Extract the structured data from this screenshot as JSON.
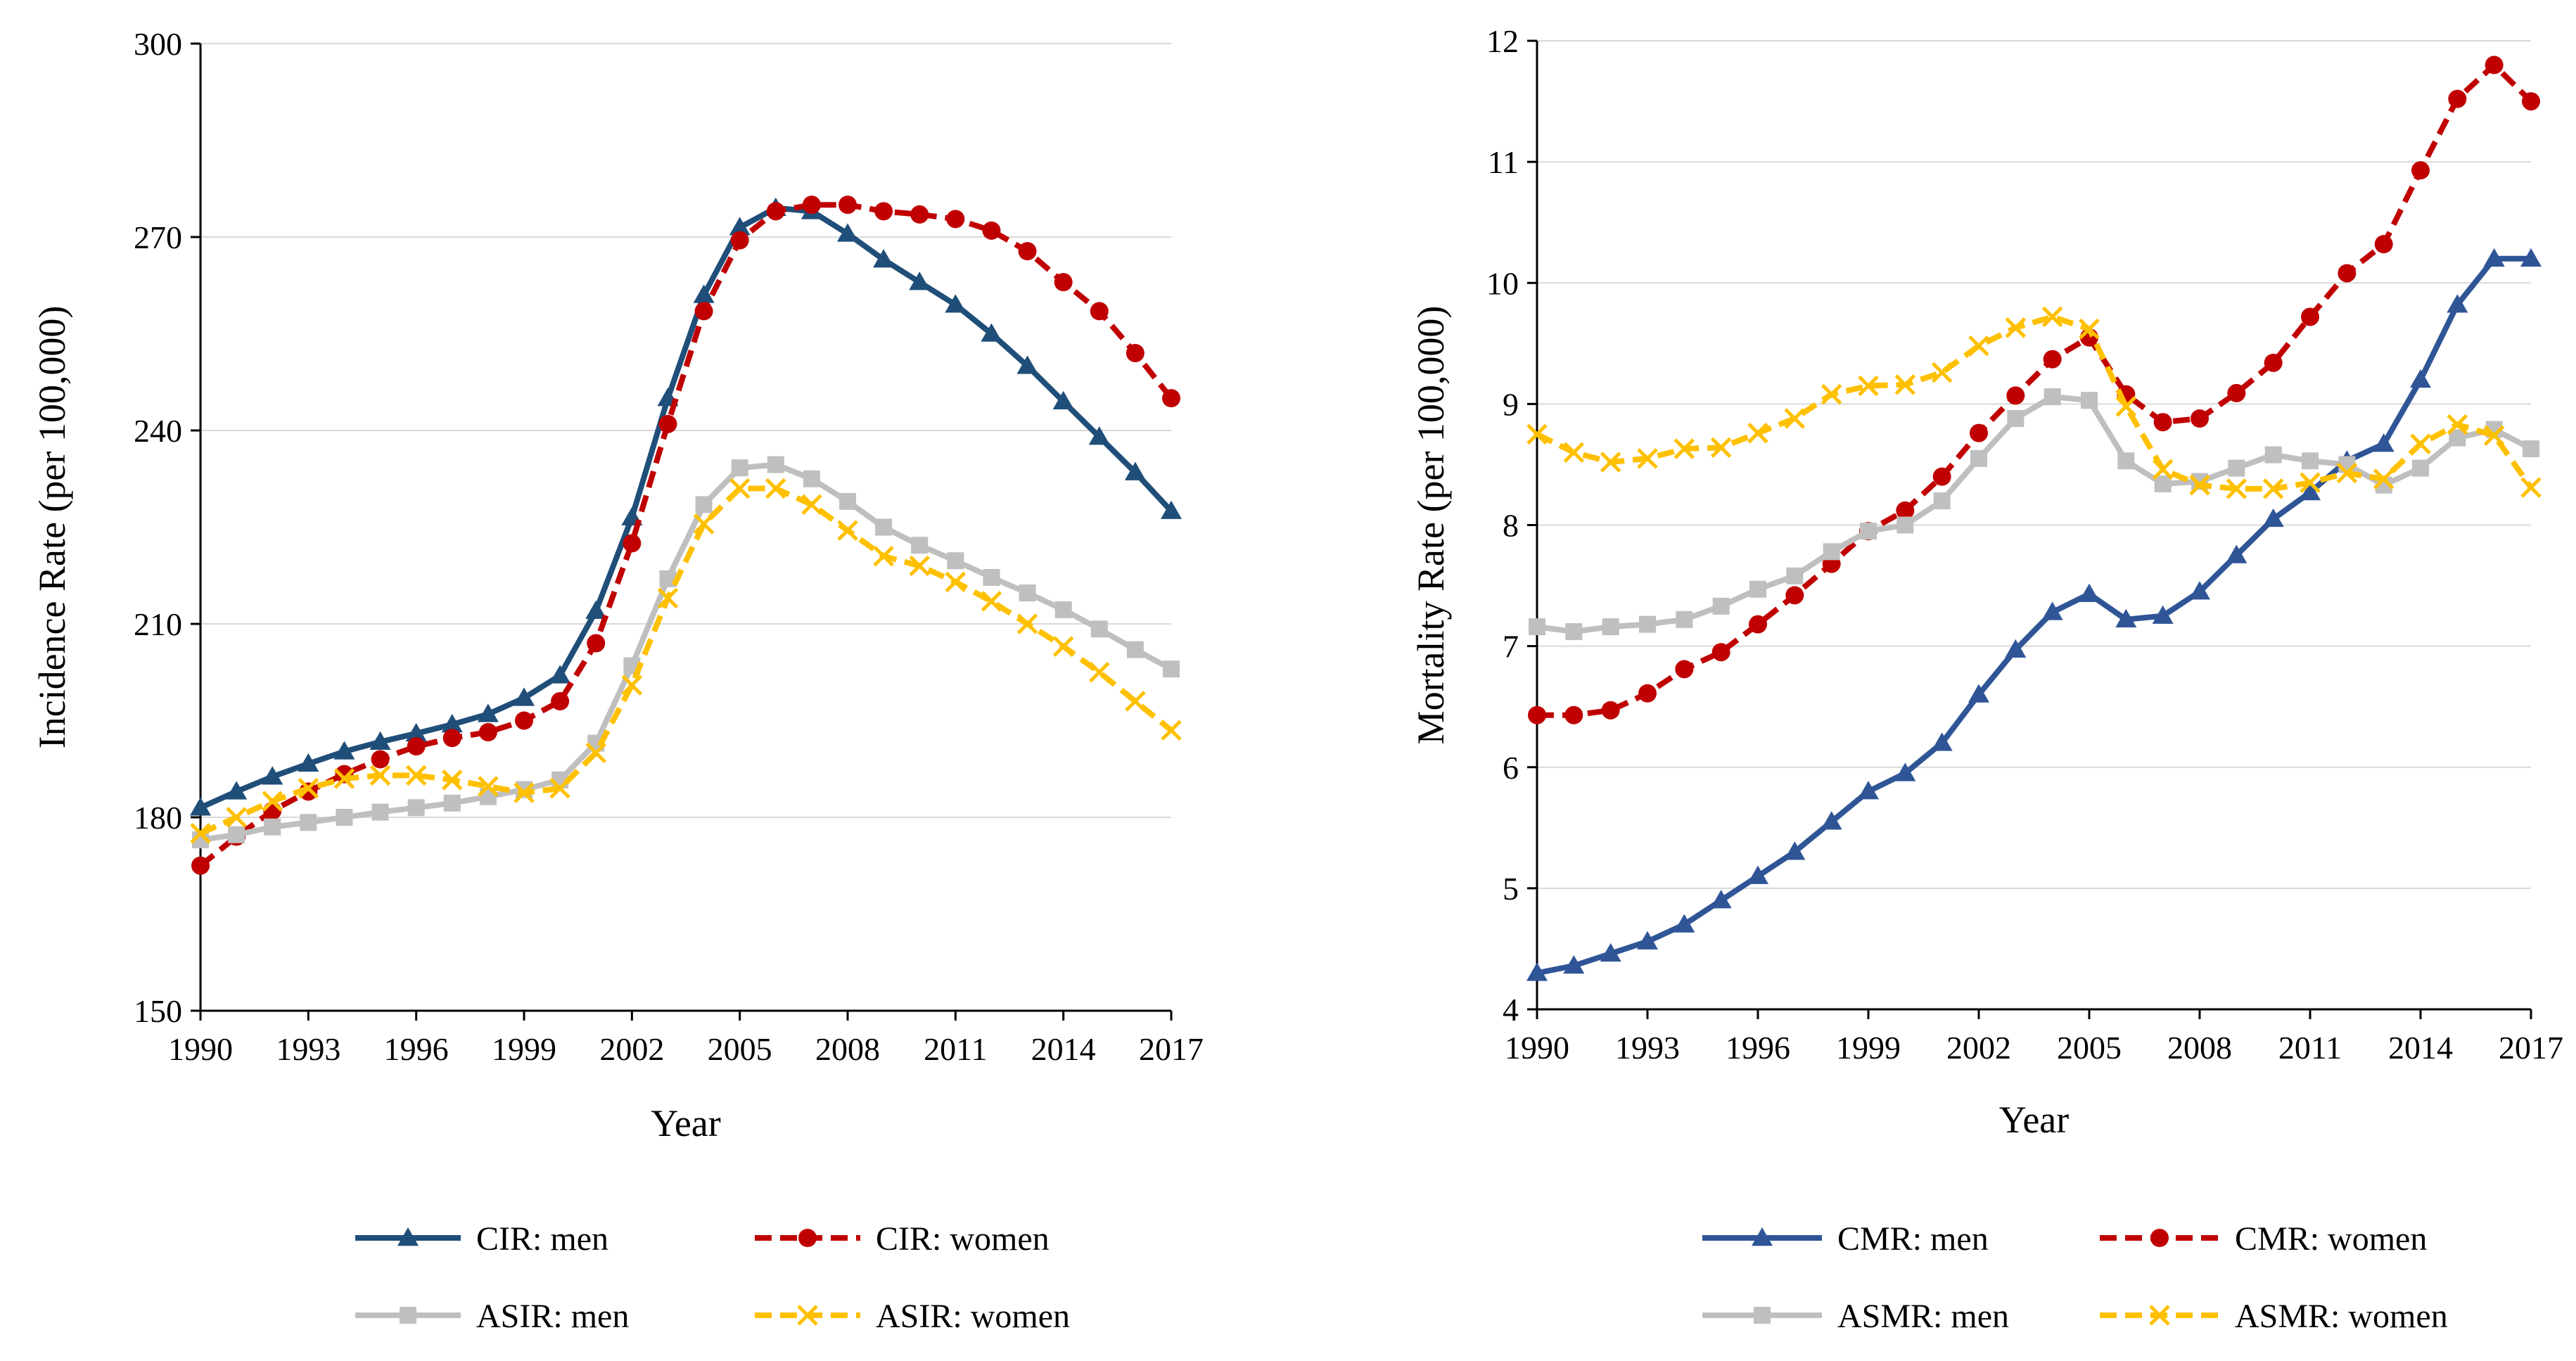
{
  "chart_data": [
    {
      "type": "line",
      "title": "",
      "xlabel": "Year",
      "ylabel": "Incidence Rate (per 100,000)",
      "xlim": [
        1990,
        2017
      ],
      "ylim": [
        150,
        300
      ],
      "x_ticks": [
        1990,
        1993,
        1996,
        1999,
        2002,
        2005,
        2008,
        2011,
        2014,
        2017
      ],
      "x_tick_labels": [
        "1990",
        "1993",
        "1996",
        "1999",
        "2002",
        "2005",
        "2008",
        "2011",
        "2014",
        "2017"
      ],
      "y_ticks": [
        150,
        180,
        210,
        240,
        270,
        300
      ],
      "y_tick_labels": [
        "150",
        "180",
        "210",
        "240",
        "270",
        "300"
      ],
      "grid": true,
      "legend_position": "bottom",
      "x": [
        1990,
        1991,
        1992,
        1993,
        1994,
        1995,
        1996,
        1997,
        1998,
        1999,
        2000,
        2001,
        2002,
        2003,
        2004,
        2005,
        2006,
        2007,
        2008,
        2009,
        2010,
        2011,
        2012,
        2013,
        2014,
        2015,
        2016,
        2017
      ],
      "series": [
        {
          "name": "CIR: men",
          "color": "#1f4e79",
          "dash": "solid",
          "marker": "triangle",
          "values": [
            181.5,
            184.0,
            186.3,
            188.3,
            190.2,
            191.7,
            193.0,
            194.4,
            196.0,
            198.5,
            202.0,
            212.0,
            226.5,
            245.0,
            261.0,
            271.5,
            274.5,
            274.0,
            270.5,
            266.5,
            263.0,
            259.5,
            255.0,
            250.0,
            244.5,
            239.0,
            233.5,
            227.5
          ]
        },
        {
          "name": "CIR: women",
          "color": "#c00000",
          "dash": "dashed",
          "marker": "circle",
          "values": [
            172.5,
            177.0,
            181.0,
            184.0,
            186.7,
            189.0,
            191.0,
            192.3,
            193.2,
            195.0,
            198.0,
            207.0,
            222.5,
            241.0,
            258.5,
            269.5,
            274.0,
            275.0,
            275.0,
            274.0,
            273.5,
            272.8,
            271.0,
            267.8,
            263.0,
            258.5,
            252.0,
            245.0
          ]
        },
        {
          "name": "ASIR: men",
          "color": "#bfbfbf",
          "dash": "solid",
          "marker": "square",
          "values": [
            176.5,
            177.3,
            178.5,
            179.2,
            180.0,
            180.8,
            181.5,
            182.2,
            183.2,
            184.3,
            185.8,
            191.5,
            203.5,
            217.0,
            228.5,
            234.2,
            234.7,
            232.5,
            229.0,
            225.0,
            222.2,
            219.8,
            217.2,
            214.8,
            212.2,
            209.2,
            206.0,
            203.0
          ]
        },
        {
          "name": "ASIR: women",
          "color": "#ffc000",
          "dash": "dashed",
          "marker": "x",
          "values": [
            177.5,
            180.0,
            182.5,
            184.5,
            186.0,
            186.5,
            186.5,
            185.8,
            184.8,
            183.8,
            184.5,
            190.0,
            200.5,
            214.0,
            225.5,
            231.0,
            231.0,
            228.5,
            224.5,
            220.5,
            219.0,
            216.5,
            213.5,
            210.0,
            206.5,
            202.5,
            198.0,
            193.5
          ]
        }
      ],
      "legend": [
        [
          "CIR: men",
          "CIR: women"
        ],
        [
          "ASIR: men",
          "ASIR: women"
        ]
      ]
    },
    {
      "type": "line",
      "title": "",
      "xlabel": "Year",
      "ylabel": "Mortality Rate (per 100,000)",
      "xlim": [
        1990,
        2017
      ],
      "ylim": [
        4,
        12
      ],
      "x_ticks": [
        1990,
        1993,
        1996,
        1999,
        2002,
        2005,
        2008,
        2011,
        2014,
        2017
      ],
      "x_tick_labels": [
        "1990",
        "1993",
        "1996",
        "1999",
        "2002",
        "2005",
        "2008",
        "2011",
        "2014",
        "2017"
      ],
      "y_ticks": [
        4,
        5,
        6,
        7,
        8,
        9,
        10,
        11,
        12
      ],
      "y_tick_labels": [
        "4",
        "5",
        "6",
        "7",
        "8",
        "9",
        "10",
        "11",
        "12"
      ],
      "grid": true,
      "legend_position": "bottom",
      "x": [
        1990,
        1991,
        1992,
        1993,
        1994,
        1995,
        1996,
        1997,
        1998,
        1999,
        2000,
        2001,
        2002,
        2003,
        2004,
        2005,
        2006,
        2007,
        2008,
        2009,
        2010,
        2011,
        2012,
        2013,
        2014,
        2015,
        2016,
        2017
      ],
      "series": [
        {
          "name": "CMR: men",
          "color": "#2f5597",
          "dash": "solid",
          "marker": "triangle",
          "values": [
            4.3,
            4.36,
            4.46,
            4.56,
            4.7,
            4.9,
            5.1,
            5.3,
            5.55,
            5.8,
            5.95,
            6.2,
            6.6,
            6.97,
            7.28,
            7.43,
            7.22,
            7.25,
            7.45,
            7.75,
            8.05,
            8.27,
            8.53,
            8.67,
            9.2,
            9.82,
            10.2,
            10.2
          ]
        },
        {
          "name": "CMR: women",
          "color": "#c00000",
          "dash": "dashed",
          "marker": "circle",
          "values": [
            6.43,
            6.43,
            6.47,
            6.61,
            6.81,
            6.95,
            7.18,
            7.42,
            7.68,
            7.95,
            8.12,
            8.4,
            8.76,
            9.07,
            9.37,
            9.55,
            9.08,
            8.85,
            8.88,
            9.09,
            9.34,
            9.72,
            10.08,
            10.32,
            10.93,
            11.52,
            11.8,
            11.5
          ]
        },
        {
          "name": "ASMR: men",
          "color": "#bfbfbf",
          "dash": "solid",
          "marker": "square",
          "values": [
            7.16,
            7.12,
            7.16,
            7.18,
            7.22,
            7.33,
            7.47,
            7.58,
            7.78,
            7.95,
            8.0,
            8.2,
            8.55,
            8.88,
            9.06,
            9.03,
            8.53,
            8.34,
            8.36,
            8.47,
            8.58,
            8.53,
            8.5,
            8.33,
            8.47,
            8.72,
            8.79,
            8.63
          ]
        },
        {
          "name": "ASMR: women",
          "color": "#ffc000",
          "dash": "dashed",
          "marker": "x",
          "values": [
            8.75,
            8.6,
            8.52,
            8.55,
            8.63,
            8.64,
            8.76,
            8.88,
            9.08,
            9.15,
            9.16,
            9.26,
            9.48,
            9.63,
            9.72,
            9.62,
            8.98,
            8.46,
            8.33,
            8.3,
            8.3,
            8.35,
            8.43,
            8.38,
            8.67,
            8.83,
            8.74,
            8.31
          ]
        }
      ],
      "legend": [
        [
          "CMR: men",
          "CMR: women"
        ],
        [
          "ASMR: men",
          "ASMR: women"
        ]
      ]
    }
  ]
}
